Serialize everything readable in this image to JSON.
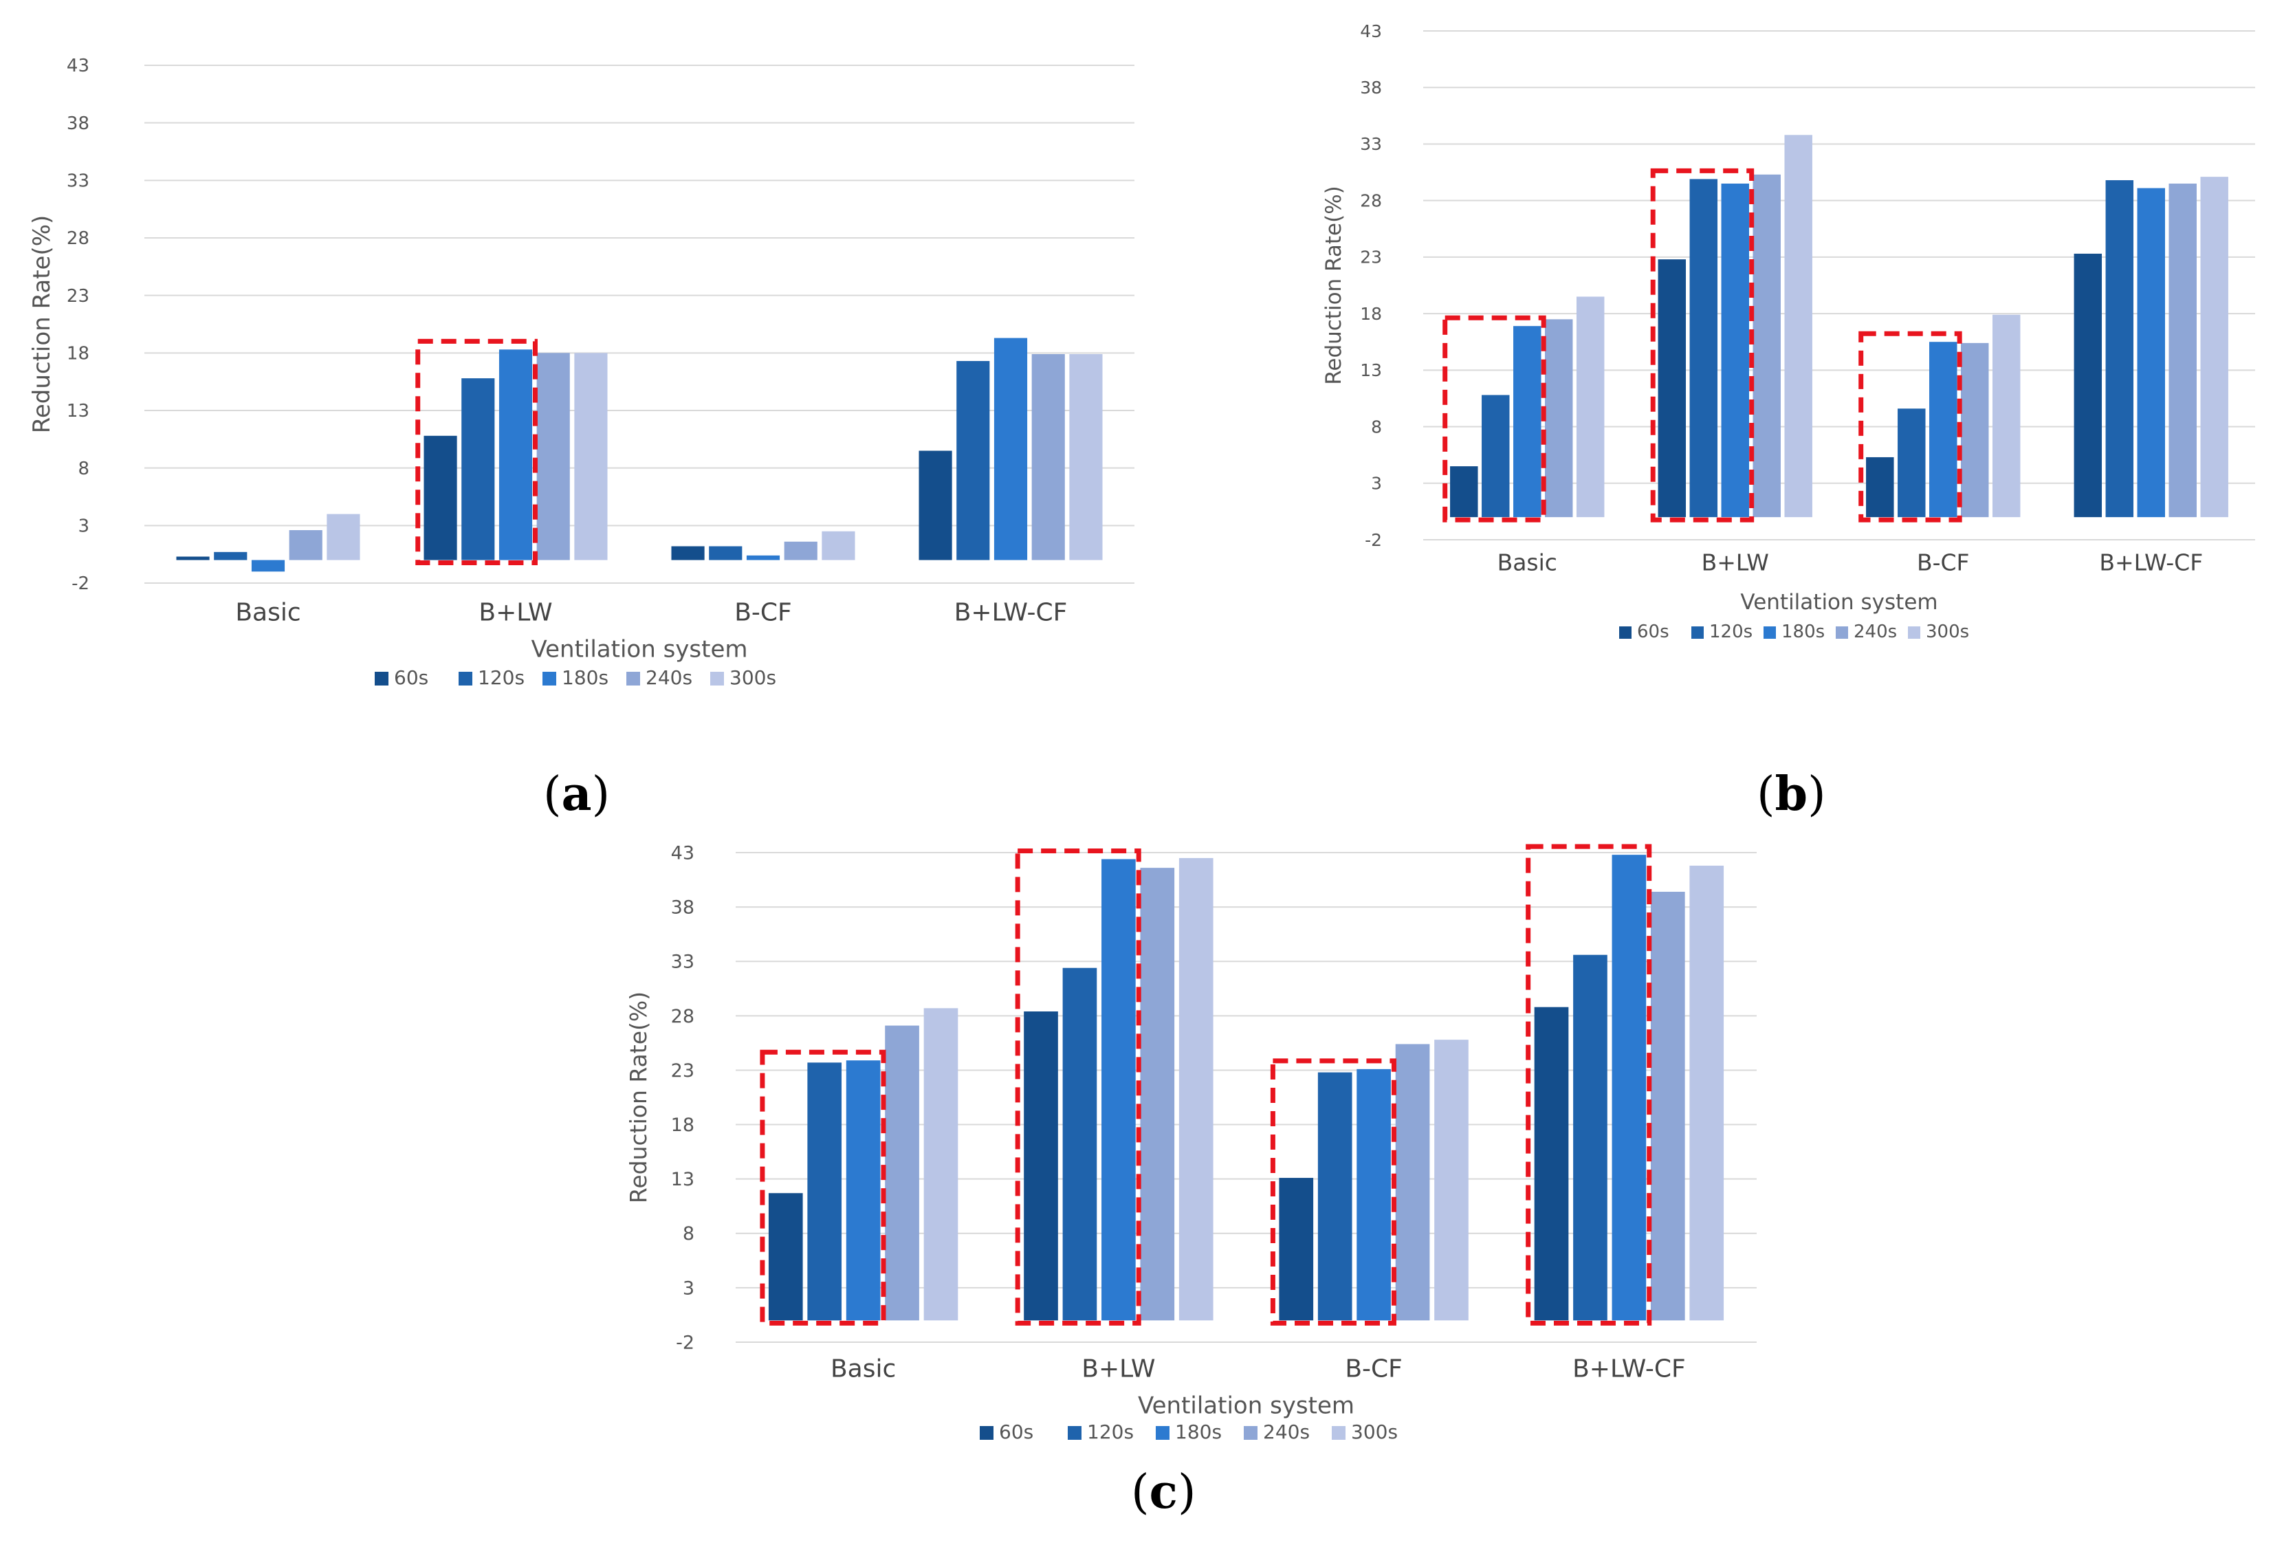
{
  "panels": [
    {
      "label": "a"
    },
    {
      "label": "b"
    },
    {
      "label": "c"
    }
  ],
  "colors": {
    "s60": "#144e8c",
    "s120": "#1f63ac",
    "s180": "#2c7ad0",
    "s240": "#8ea6d6",
    "s300": "#b9c5e6",
    "grid": "#d9d9d9",
    "highlight": "#e8141e"
  },
  "chart_data": [
    {
      "type": "bar",
      "panel": "a",
      "categories": [
        "Basic",
        "B+LW",
        "B-CF",
        "B+LW-CF"
      ],
      "series": [
        {
          "name": "60s",
          "values": [
            0.3,
            10.8,
            1.2,
            9.5
          ]
        },
        {
          "name": "120s",
          "values": [
            0.7,
            15.8,
            1.2,
            17.3
          ]
        },
        {
          "name": "180s",
          "values": [
            -1.0,
            18.3,
            0.4,
            19.3
          ]
        },
        {
          "name": "240s",
          "values": [
            2.6,
            18.0,
            1.6,
            17.9
          ]
        },
        {
          "name": "300s",
          "values": [
            4.0,
            18.0,
            2.5,
            17.9
          ]
        }
      ],
      "yticks": [
        "43",
        "38",
        "33",
        "28",
        "23",
        "18",
        "13",
        "8",
        "3",
        "-2"
      ],
      "ylim": [
        -2,
        43
      ],
      "xlabel": "Ventilation  system",
      "ylabel": "Reduction  Rate(%)",
      "grid": true,
      "legend": "bottom",
      "highlight_categories": [
        "B+LW"
      ]
    },
    {
      "type": "bar",
      "panel": "b",
      "categories": [
        "Basic",
        "B+LW",
        "B-CF",
        "B+LW-CF"
      ],
      "series": [
        {
          "name": "60s",
          "values": [
            4.5,
            22.8,
            5.3,
            23.3
          ]
        },
        {
          "name": "120s",
          "values": [
            10.8,
            29.9,
            9.6,
            29.8
          ]
        },
        {
          "name": "180s",
          "values": [
            16.9,
            29.5,
            15.5,
            29.1
          ]
        },
        {
          "name": "240s",
          "values": [
            17.5,
            30.3,
            15.4,
            29.5
          ]
        },
        {
          "name": "300s",
          "values": [
            19.5,
            33.8,
            17.9,
            30.1
          ]
        }
      ],
      "yticks": [
        "43",
        "38",
        "33",
        "28",
        "23",
        "18",
        "13",
        "8",
        "3",
        "-2"
      ],
      "ylim": [
        -2,
        43
      ],
      "xlabel": "Ventilation  system",
      "ylabel": "Reduction  Rate(%)",
      "grid": true,
      "legend": "bottom",
      "highlight_categories": [
        "Basic",
        "B+LW",
        "B-CF"
      ]
    },
    {
      "type": "bar",
      "panel": "c",
      "categories": [
        "Basic",
        "B+LW",
        "B-CF",
        "B+LW-CF"
      ],
      "series": [
        {
          "name": "60s",
          "values": [
            11.7,
            28.4,
            13.1,
            28.8
          ]
        },
        {
          "name": "120s",
          "values": [
            23.7,
            32.4,
            22.8,
            33.6
          ]
        },
        {
          "name": "180s",
          "values": [
            23.9,
            42.4,
            23.1,
            42.8
          ]
        },
        {
          "name": "240s",
          "values": [
            27.1,
            41.6,
            25.4,
            39.4
          ]
        },
        {
          "name": "300s",
          "values": [
            28.7,
            42.5,
            25.8,
            41.8
          ]
        }
      ],
      "yticks": [
        "43",
        "38",
        "33",
        "28",
        "23",
        "18",
        "13",
        "8",
        "3",
        "-2"
      ],
      "ylim": [
        -2,
        43
      ],
      "xlabel": "Ventilation  system",
      "ylabel": "Reduction  Rate(%)",
      "grid": true,
      "legend": "bottom",
      "highlight_categories": [
        "Basic",
        "B+LW",
        "B-CF",
        "B+LW-CF"
      ]
    }
  ]
}
